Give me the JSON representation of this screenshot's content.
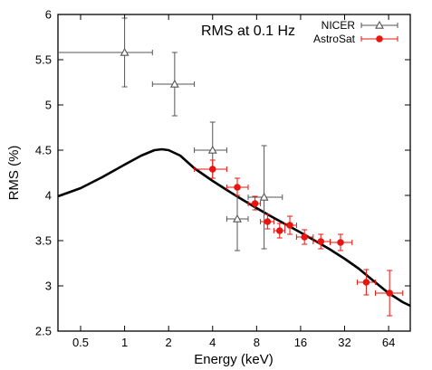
{
  "chart_data": {
    "type": "scatter",
    "title": "RMS at 0.1 Hz",
    "xlabel": "Energy (keV)",
    "ylabel": "RMS (%)",
    "xscale": "log2",
    "xlim": [
      0.35,
      90
    ],
    "ylim": [
      2.5,
      6
    ],
    "xticks": [
      0.5,
      1,
      2,
      4,
      8,
      16,
      32,
      64
    ],
    "xtick_labels": [
      "0.5",
      "1",
      "2",
      "4",
      "8",
      "16",
      "32",
      "64"
    ],
    "yticks": [
      2.5,
      3,
      3.5,
      4,
      4.5,
      5,
      5.5,
      6
    ],
    "ytick_labels": [
      "2.5",
      "3",
      "3.5",
      "4",
      "4.5",
      "5",
      "5.5",
      "6"
    ],
    "legend_position": "top-right",
    "series": [
      {
        "name": "NICER",
        "color": "#555555",
        "marker": "open-triangle",
        "points": [
          {
            "x": 1.0,
            "xlo": 0.3,
            "xhi": 1.55,
            "y": 5.58,
            "ylo": 5.2,
            "yhi": 5.96
          },
          {
            "x": 2.2,
            "xlo": 1.55,
            "xhi": 3.0,
            "y": 5.23,
            "ylo": 4.88,
            "yhi": 5.58
          },
          {
            "x": 4.0,
            "xlo": 3.0,
            "xhi": 5.0,
            "y": 4.5,
            "ylo": 4.19,
            "yhi": 4.81
          },
          {
            "x": 5.9,
            "xlo": 5.0,
            "xhi": 7.0,
            "y": 3.74,
            "ylo": 3.39,
            "yhi": 4.09
          },
          {
            "x": 9.0,
            "xlo": 7.0,
            "xhi": 12.0,
            "y": 3.98,
            "ylo": 3.41,
            "yhi": 4.55
          }
        ]
      },
      {
        "name": "AstroSat",
        "color": "#e8140f",
        "marker": "filled-circle",
        "points": [
          {
            "x": 4.0,
            "xlo": 3.0,
            "xhi": 5.0,
            "y": 4.29,
            "ylo": 4.19,
            "yhi": 4.39
          },
          {
            "x": 5.9,
            "xlo": 5.0,
            "xhi": 7.0,
            "y": 4.09,
            "ylo": 4.0,
            "yhi": 4.19
          },
          {
            "x": 7.8,
            "xlo": 7.0,
            "xhi": 8.5,
            "y": 3.91,
            "ylo": 3.84,
            "yhi": 3.99
          },
          {
            "x": 9.5,
            "xlo": 8.5,
            "xhi": 10.5,
            "y": 3.71,
            "ylo": 3.63,
            "yhi": 3.79
          },
          {
            "x": 11.5,
            "xlo": 10.5,
            "xhi": 12.5,
            "y": 3.61,
            "ylo": 3.53,
            "yhi": 3.69
          },
          {
            "x": 13.5,
            "xlo": 12.5,
            "xhi": 15.0,
            "y": 3.67,
            "ylo": 3.57,
            "yhi": 3.77
          },
          {
            "x": 17.0,
            "xlo": 15.0,
            "xhi": 19.5,
            "y": 3.54,
            "ylo": 3.46,
            "yhi": 3.62
          },
          {
            "x": 22.0,
            "xlo": 19.5,
            "xhi": 25.5,
            "y": 3.49,
            "ylo": 3.41,
            "yhi": 3.57
          },
          {
            "x": 30.0,
            "xlo": 25.5,
            "xhi": 36.0,
            "y": 3.48,
            "ylo": 3.39,
            "yhi": 3.57
          },
          {
            "x": 45.0,
            "xlo": 39.0,
            "xhi": 52.0,
            "y": 3.04,
            "ylo": 2.9,
            "yhi": 3.18
          },
          {
            "x": 65.0,
            "xlo": 52.0,
            "xhi": 80.0,
            "y": 2.92,
            "ylo": 2.67,
            "yhi": 3.17
          }
        ]
      },
      {
        "kind": "model-curve",
        "color": "#000000",
        "x": [
          0.35,
          0.5,
          0.7,
          1.0,
          1.3,
          1.6,
          1.8,
          2.0,
          2.4,
          3.0,
          4.0,
          5.0,
          6.0,
          8.0,
          10.0,
          12.0,
          16.0,
          20.0,
          25.0,
          32.0,
          40.0,
          50.0,
          64.0,
          80.0,
          90.0
        ],
        "y": [
          3.99,
          4.08,
          4.2,
          4.34,
          4.44,
          4.5,
          4.51,
          4.5,
          4.44,
          4.3,
          4.16,
          4.06,
          3.98,
          3.86,
          3.77,
          3.7,
          3.59,
          3.5,
          3.41,
          3.3,
          3.19,
          3.06,
          2.92,
          2.82,
          2.78
        ]
      }
    ]
  }
}
